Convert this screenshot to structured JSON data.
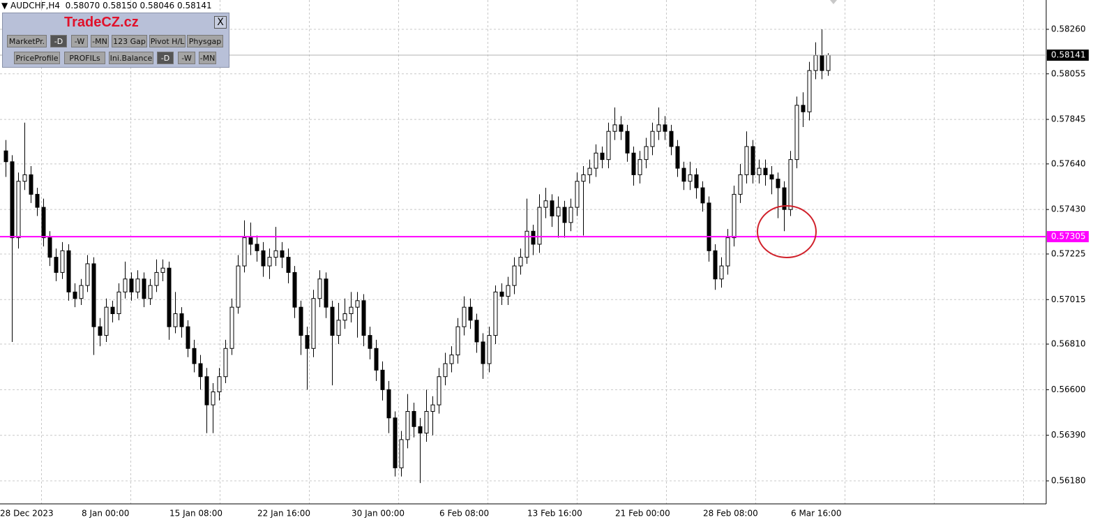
{
  "header": {
    "symbol_line": "AUDCHF,H4  0.58070 0.58150 0.58046 0.58141"
  },
  "panel": {
    "title": "TradeCZ.cz",
    "close": "X",
    "row1": [
      "MarketPr.",
      "-D",
      "-W",
      "-MN",
      "123 Gap",
      "Pivot H/L",
      "Physgap"
    ],
    "row2": [
      "PriceProfile",
      "PROFILs",
      "Ini.Balance",
      "-D",
      "-W",
      "-MN"
    ]
  },
  "chart_data": {
    "type": "candlestick",
    "categories": [
      "28 Dec 2023",
      null,
      null,
      null,
      null,
      null,
      null,
      null,
      null,
      null,
      null,
      null,
      null,
      "8 Jan 00:00",
      null,
      null,
      null,
      null,
      null,
      null,
      null,
      null,
      null,
      null,
      null,
      null,
      null,
      "15 Jan 08:00",
      null,
      null,
      null,
      null,
      null,
      null,
      null,
      null,
      null,
      null,
      null,
      null,
      null,
      "22 Jan 16:00",
      null,
      null,
      null,
      null,
      null,
      null,
      null,
      null,
      null,
      null,
      null,
      null,
      null,
      null,
      "30 Jan 00:00",
      null,
      null,
      null,
      null,
      null,
      null,
      null,
      null,
      null,
      null,
      null,
      null,
      null,
      "6 Feb 08:00",
      null,
      null,
      null,
      null,
      null,
      null,
      null,
      null,
      null,
      null,
      null,
      null,
      null,
      "13 Feb 16:00",
      null,
      null,
      null,
      null,
      null,
      null,
      null,
      null,
      null,
      null,
      null,
      null,
      null,
      "21 Feb 00:00",
      null,
      null,
      null,
      null,
      null,
      null,
      null,
      null,
      null,
      null,
      null,
      null,
      null,
      "28 Feb 08:00",
      null,
      null,
      null,
      null,
      null,
      null,
      null,
      null,
      null,
      null,
      null,
      null,
      null,
      "6 Mar 16:00",
      null,
      null,
      null,
      null,
      null
    ],
    "open": [
      0.577,
      0.5765,
      0.573,
      0.5756,
      0.5759,
      0.575,
      0.5744,
      0.573,
      0.5721,
      0.5714,
      0.5724,
      0.5705,
      0.5702,
      0.5708,
      0.5718,
      0.5689,
      0.5685,
      0.5698,
      0.5695,
      0.5705,
      0.5711,
      0.5705,
      0.5711,
      0.5702,
      0.5708,
      0.5714,
      0.5716,
      0.5689,
      0.5695,
      0.5689,
      0.5679,
      0.5672,
      0.5666,
      0.5653,
      0.5659,
      0.5666,
      0.5679,
      0.5698,
      0.5717,
      0.573,
      0.5727,
      0.5724,
      0.5717,
      0.5721,
      0.5724,
      0.5721,
      0.5714,
      0.5698,
      0.5685,
      0.5679,
      0.5702,
      0.5711,
      0.5698,
      0.5685,
      0.5692,
      0.5695,
      0.5698,
      0.5701,
      0.5685,
      0.5679,
      0.5669,
      0.566,
      0.5647,
      0.5624,
      0.5637,
      0.565,
      0.5643,
      0.564,
      0.565,
      0.5653,
      0.5666,
      0.5672,
      0.5676,
      0.5689,
      0.5698,
      0.5692,
      0.5682,
      0.5672,
      0.5685,
      0.5705,
      0.5703,
      0.5708,
      0.5717,
      0.5721,
      0.5733,
      0.5727,
      0.5744,
      0.5747,
      0.574,
      0.5744,
      0.5737,
      0.5744,
      0.5756,
      0.5759,
      0.5762,
      0.5769,
      0.5766,
      0.5779,
      0.5782,
      0.5779,
      0.5769,
      0.5759,
      0.5766,
      0.5772,
      0.5779,
      0.5782,
      0.5779,
      0.5772,
      0.5762,
      0.5756,
      0.5759,
      0.5753,
      0.5746,
      0.5724,
      0.5711,
      0.5717,
      0.573,
      0.575,
      0.5759,
      0.5772,
      0.5759,
      0.5762,
      0.5759,
      0.5757,
      0.5753,
      0.5743,
      0.5766,
      0.5791,
      0.5788,
      0.5807,
      0.5814,
      0.5807
    ],
    "high": [
      0.5775,
      0.5768,
      0.576,
      0.5783,
      0.5763,
      0.5753,
      0.5748,
      0.5733,
      0.5725,
      0.5728,
      0.5727,
      0.5709,
      0.5711,
      0.5722,
      0.5721,
      0.5693,
      0.5702,
      0.5701,
      0.5709,
      0.5719,
      0.5714,
      0.5715,
      0.5714,
      0.5711,
      0.572,
      0.572,
      0.5719,
      0.5705,
      0.5698,
      0.5692,
      0.5683,
      0.5676,
      0.567,
      0.5663,
      0.567,
      0.5683,
      0.5702,
      0.5722,
      0.5738,
      0.5737,
      0.5731,
      0.5728,
      0.5725,
      0.5735,
      0.5728,
      0.5725,
      0.5717,
      0.5701,
      0.5689,
      0.5706,
      0.5715,
      0.5714,
      0.5701,
      0.57,
      0.5702,
      0.5705,
      0.5705,
      0.5704,
      0.5689,
      0.5683,
      0.5673,
      0.5664,
      0.565,
      0.5641,
      0.5658,
      0.5654,
      0.5647,
      0.566,
      0.5657,
      0.567,
      0.5677,
      0.568,
      0.5693,
      0.5703,
      0.5702,
      0.5695,
      0.5686,
      0.5689,
      0.5708,
      0.5709,
      0.5712,
      0.5721,
      0.5725,
      0.5748,
      0.5736,
      0.575,
      0.5753,
      0.575,
      0.5749,
      0.5747,
      0.5748,
      0.576,
      0.5763,
      0.5766,
      0.5773,
      0.5772,
      0.5783,
      0.579,
      0.5786,
      0.5782,
      0.5772,
      0.577,
      0.5776,
      0.5783,
      0.579,
      0.5786,
      0.5782,
      0.5775,
      0.5765,
      0.5765,
      0.5762,
      0.5756,
      0.5749,
      0.5727,
      0.5721,
      0.5734,
      0.5754,
      0.5764,
      0.5779,
      0.5775,
      0.5766,
      0.5766,
      0.5763,
      0.576,
      0.5756,
      0.577,
      0.5795,
      0.5797,
      0.5811,
      0.582,
      0.5826,
      0.5815
    ],
    "low": [
      0.5758,
      0.5682,
      0.5725,
      0.5752,
      0.5746,
      0.574,
      0.5726,
      0.5717,
      0.571,
      0.5711,
      0.5701,
      0.5698,
      0.5699,
      0.5705,
      0.5676,
      0.568,
      0.5682,
      0.5691,
      0.5692,
      0.5702,
      0.5701,
      0.5702,
      0.5698,
      0.5699,
      0.5705,
      0.571,
      0.5683,
      0.5686,
      0.5684,
      0.5675,
      0.5668,
      0.566,
      0.564,
      0.564,
      0.5655,
      0.5663,
      0.5676,
      0.5695,
      0.5714,
      0.5722,
      0.5719,
      0.5712,
      0.5711,
      0.5717,
      0.5716,
      0.5709,
      0.5693,
      0.5676,
      0.566,
      0.5675,
      0.5698,
      0.5693,
      0.5662,
      0.5681,
      0.5688,
      0.5691,
      0.5684,
      0.568,
      0.5674,
      0.5664,
      0.5655,
      0.564,
      0.562,
      0.562,
      0.5633,
      0.5638,
      0.5617,
      0.5636,
      0.5639,
      0.5649,
      0.5662,
      0.5668,
      0.5672,
      0.5685,
      0.5688,
      0.5677,
      0.5665,
      0.5668,
      0.5681,
      0.5699,
      0.5699,
      0.5704,
      0.5713,
      0.5718,
      0.5722,
      0.5723,
      0.5739,
      0.5735,
      0.573,
      0.573,
      0.5733,
      0.574,
      0.5731,
      0.5755,
      0.5758,
      0.5762,
      0.5762,
      0.5775,
      0.5775,
      0.5765,
      0.5754,
      0.5755,
      0.5762,
      0.5768,
      0.5775,
      0.5775,
      0.5768,
      0.5758,
      0.5752,
      0.5752,
      0.5748,
      0.5742,
      0.5719,
      0.5706,
      0.5707,
      0.5713,
      0.5726,
      0.5746,
      0.5755,
      0.5755,
      0.5755,
      0.5754,
      0.575,
      0.5739,
      0.5733,
      0.574,
      0.5762,
      0.5781,
      0.5784,
      0.5803,
      0.5803,
      0.58046
    ],
    "close": [
      0.5765,
      0.573,
      0.5756,
      0.5759,
      0.575,
      0.5744,
      0.573,
      0.5721,
      0.5714,
      0.5724,
      0.5705,
      0.5702,
      0.5708,
      0.5718,
      0.5689,
      0.5685,
      0.5698,
      0.5695,
      0.5705,
      0.5711,
      0.5705,
      0.5711,
      0.5702,
      0.5708,
      0.5714,
      0.5716,
      0.5689,
      0.5695,
      0.5689,
      0.5679,
      0.5672,
      0.5666,
      0.5653,
      0.5659,
      0.5666,
      0.5679,
      0.5698,
      0.5717,
      0.573,
      0.5727,
      0.5724,
      0.5717,
      0.5721,
      0.5724,
      0.5721,
      0.5714,
      0.5698,
      0.5685,
      0.5679,
      0.5702,
      0.5711,
      0.5698,
      0.5685,
      0.5692,
      0.5695,
      0.5698,
      0.5701,
      0.5685,
      0.5679,
      0.5669,
      0.566,
      0.5647,
      0.5624,
      0.5637,
      0.565,
      0.5643,
      0.564,
      0.565,
      0.5653,
      0.5666,
      0.5672,
      0.5676,
      0.5689,
      0.5698,
      0.5692,
      0.5682,
      0.5672,
      0.5685,
      0.5705,
      0.5703,
      0.5708,
      0.5717,
      0.5721,
      0.5733,
      0.5727,
      0.5744,
      0.5747,
      0.574,
      0.5744,
      0.5737,
      0.5744,
      0.5756,
      0.5759,
      0.5762,
      0.5769,
      0.5766,
      0.5779,
      0.5782,
      0.5779,
      0.5769,
      0.5759,
      0.5766,
      0.5772,
      0.5779,
      0.5782,
      0.5779,
      0.5772,
      0.5762,
      0.5756,
      0.5759,
      0.5753,
      0.5746,
      0.5724,
      0.5711,
      0.5717,
      0.573,
      0.575,
      0.5759,
      0.5772,
      0.5759,
      0.5762,
      0.5759,
      0.5757,
      0.5753,
      0.5743,
      0.5766,
      0.5791,
      0.5788,
      0.5807,
      0.5814,
      0.5807,
      0.58141
    ],
    "bull_color": "#ffffff",
    "bear_color": "#000000",
    "wick_color": "#000000",
    "ylim": [
      0.56074,
      0.58395
    ],
    "yticks": [
      {
        "value": 0.5826,
        "label": "0.58260"
      },
      0.58055,
      0.57845,
      {
        "value": 0.5764,
        "label": "0.57640"
      },
      {
        "value": 0.5743,
        "label": "0.57430"
      },
      0.57225,
      0.57015,
      {
        "value": 0.5681,
        "label": "0.56810"
      },
      {
        "value": 0.566,
        "label": "0.56600"
      },
      {
        "value": 0.5639,
        "label": "0.56390"
      },
      {
        "value": 0.5618,
        "label": "0.56180"
      }
    ],
    "grid": true,
    "current_price": {
      "value": 0.58141,
      "label": "0.58141",
      "color": "#000000"
    },
    "hline": {
      "value": 0.57305,
      "label": "0.57305",
      "color": "#ff00ff"
    }
  }
}
